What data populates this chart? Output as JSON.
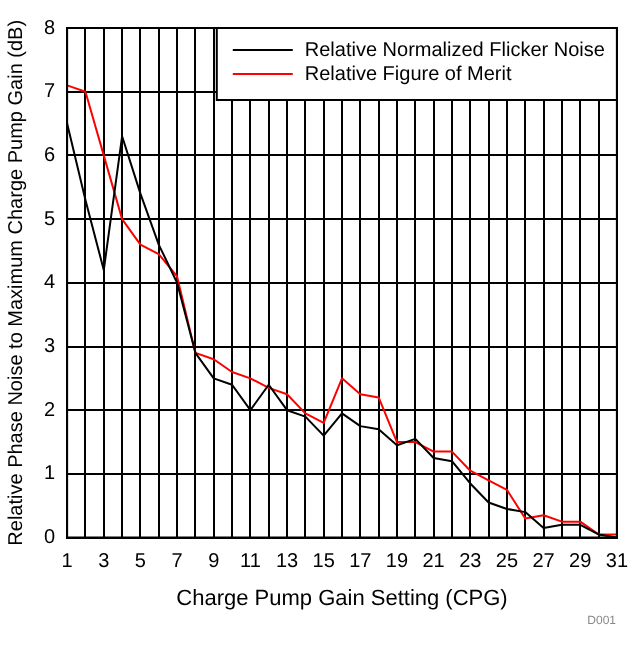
{
  "chart_data": {
    "type": "line",
    "xlabel": "Charge Pump Gain Setting (CPG)",
    "ylabel": "Relative Phase Noise to Maximum Charge Pump Gain (dB)",
    "annotations": [
      "D001"
    ],
    "x": [
      1,
      2,
      3,
      4,
      5,
      6,
      7,
      8,
      9,
      10,
      11,
      12,
      13,
      14,
      15,
      16,
      17,
      18,
      19,
      20,
      21,
      22,
      23,
      24,
      25,
      26,
      27,
      28,
      29,
      30,
      31
    ],
    "series": [
      {
        "name": "Relative Normalized Flicker Noise",
        "color": "#000000",
        "values": [
          6.5,
          5.3,
          4.2,
          6.3,
          5.4,
          4.6,
          4.0,
          2.9,
          2.5,
          2.4,
          2.0,
          2.4,
          2.0,
          1.9,
          1.6,
          1.95,
          1.75,
          1.7,
          1.45,
          1.55,
          1.25,
          1.2,
          0.85,
          0.55,
          0.45,
          0.4,
          0.15,
          0.2,
          0.2,
          0.05,
          0.0
        ]
      },
      {
        "name": "Relative Figure of Merit",
        "color": "#ff0000",
        "values": [
          7.1,
          7.0,
          6.0,
          5.0,
          4.6,
          4.45,
          4.1,
          2.9,
          2.8,
          2.6,
          2.5,
          2.35,
          2.25,
          1.95,
          1.8,
          2.5,
          2.25,
          2.2,
          1.5,
          1.5,
          1.35,
          1.35,
          1.05,
          0.9,
          0.75,
          0.3,
          0.35,
          0.25,
          0.25,
          0.05,
          0.05
        ]
      }
    ],
    "xlim": [
      1,
      31
    ],
    "xticks": [
      1,
      {
        "value": 2,
        "label": null
      },
      3,
      {
        "value": 4,
        "label": null
      },
      5,
      {
        "value": 6,
        "label": null
      },
      7,
      {
        "value": 8,
        "label": null
      },
      9,
      {
        "value": 10,
        "label": null
      },
      11,
      {
        "value": 12,
        "label": null
      },
      13,
      {
        "value": 14,
        "label": null
      },
      15,
      {
        "value": 16,
        "label": null
      },
      17,
      {
        "value": 18,
        "label": null
      },
      19,
      {
        "value": 20,
        "label": null
      },
      21,
      {
        "value": 22,
        "label": null
      },
      23,
      {
        "value": 24,
        "label": null
      },
      25,
      {
        "value": 26,
        "label": null
      },
      27,
      {
        "value": 28,
        "label": null
      },
      29,
      {
        "value": 30,
        "label": null
      },
      31
    ],
    "ylim": [
      0,
      8
    ],
    "yticks": [
      0,
      1,
      2,
      3,
      4,
      5,
      6,
      7,
      8
    ],
    "grid": true,
    "legend": "top right",
    "marker": "none",
    "line_style": "solid"
  }
}
